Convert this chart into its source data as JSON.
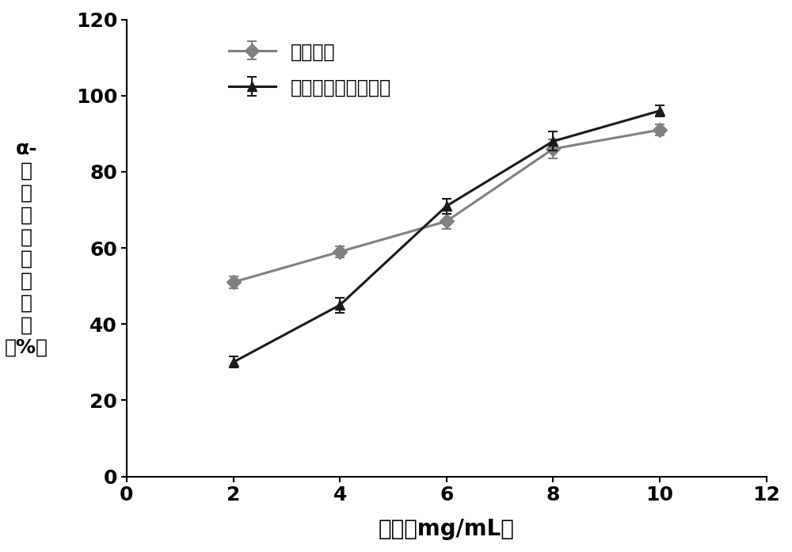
{
  "x": [
    2,
    4,
    6,
    8,
    10
  ],
  "series1_y": [
    51,
    59,
    67,
    86,
    91
  ],
  "series1_yerr": [
    1.5,
    1.5,
    2.0,
    2.5,
    1.5
  ],
  "series1_label": "阵卡波糖",
  "series1_color": "#808080",
  "series1_marker": "D",
  "series2_y": [
    30,
    45,
    71,
    88,
    96
  ],
  "series2_yerr": [
    1.5,
    2.0,
    2.0,
    2.5,
    1.5
  ],
  "series2_label": "慈姑非淠粉多糖组分",
  "series2_color": "#1a1a1a",
  "series2_marker": "^",
  "xlabel": "浓度（mg/mL）",
  "ylabel_line1": "α-",
  "ylabel_line2": "葡萄糖苷酶抑制率",
  "ylabel_line3": "（%）",
  "xlim": [
    0,
    12
  ],
  "ylim": [
    0,
    120
  ],
  "yticks": [
    0,
    20,
    40,
    60,
    80,
    100,
    120
  ],
  "xticks": [
    0,
    2,
    4,
    6,
    8,
    10,
    12
  ],
  "fontsize_label": 20,
  "fontsize_tick": 18,
  "fontsize_legend": 17,
  "fontsize_ylabel": 18,
  "linewidth": 2.2,
  "markersize": 9
}
